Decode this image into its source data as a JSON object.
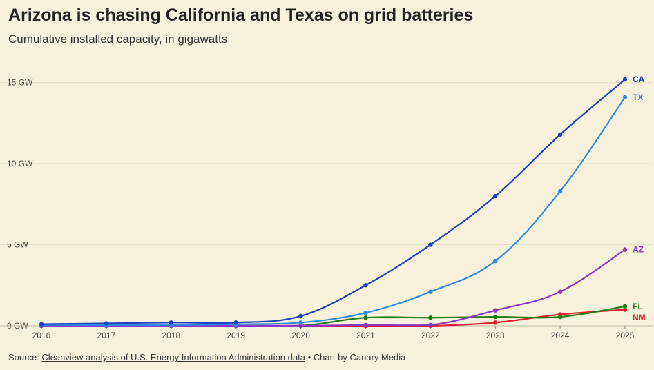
{
  "chart_data": {
    "type": "line",
    "title": "Arizona is chasing California and Texas on grid batteries",
    "subtitle": "Cumulative installed capacity, in gigawatts",
    "x": [
      2016,
      2017,
      2018,
      2019,
      2020,
      2021,
      2022,
      2023,
      2024,
      2025
    ],
    "x_tick_labels": [
      "2016",
      "2017",
      "2018",
      "2019",
      "2020",
      "2021",
      "2022",
      "2023",
      "2024",
      "2025"
    ],
    "y_ticks": [
      0,
      5,
      10,
      15
    ],
    "y_tick_labels": [
      "0 GW",
      "5 GW",
      "10 GW",
      "15 GW"
    ],
    "ylim": [
      0,
      15.5
    ],
    "xlabel": "",
    "ylabel": "",
    "grid": true,
    "series": [
      {
        "name": "CA",
        "color": "#1c3fc4",
        "values": [
          0.1,
          0.15,
          0.2,
          0.2,
          0.6,
          2.5,
          5.0,
          8.0,
          11.8,
          15.2
        ]
      },
      {
        "name": "TX",
        "color": "#2e8ae6",
        "values": [
          0.05,
          0.05,
          0.05,
          0.1,
          0.2,
          0.8,
          2.1,
          4.0,
          8.3,
          14.1
        ]
      },
      {
        "name": "AZ",
        "color": "#8a35c8",
        "values": [
          0.0,
          0.0,
          0.0,
          0.0,
          0.0,
          0.05,
          0.05,
          0.95,
          2.1,
          4.7
        ]
      },
      {
        "name": "FL",
        "color": "#1e7a12",
        "values": [
          0.0,
          0.0,
          0.0,
          0.0,
          0.0,
          0.5,
          0.5,
          0.55,
          0.55,
          1.2
        ]
      },
      {
        "name": "NM",
        "color": "#e8192c",
        "values": [
          0.0,
          0.0,
          0.0,
          0.0,
          0.0,
          0.0,
          0.0,
          0.2,
          0.7,
          1.0
        ]
      }
    ]
  },
  "footer": {
    "source_prefix": "Source: ",
    "source_link": "Cleanview analysis of U.S. Energy Information Administration data",
    "credit": " • Chart by Canary Media"
  }
}
